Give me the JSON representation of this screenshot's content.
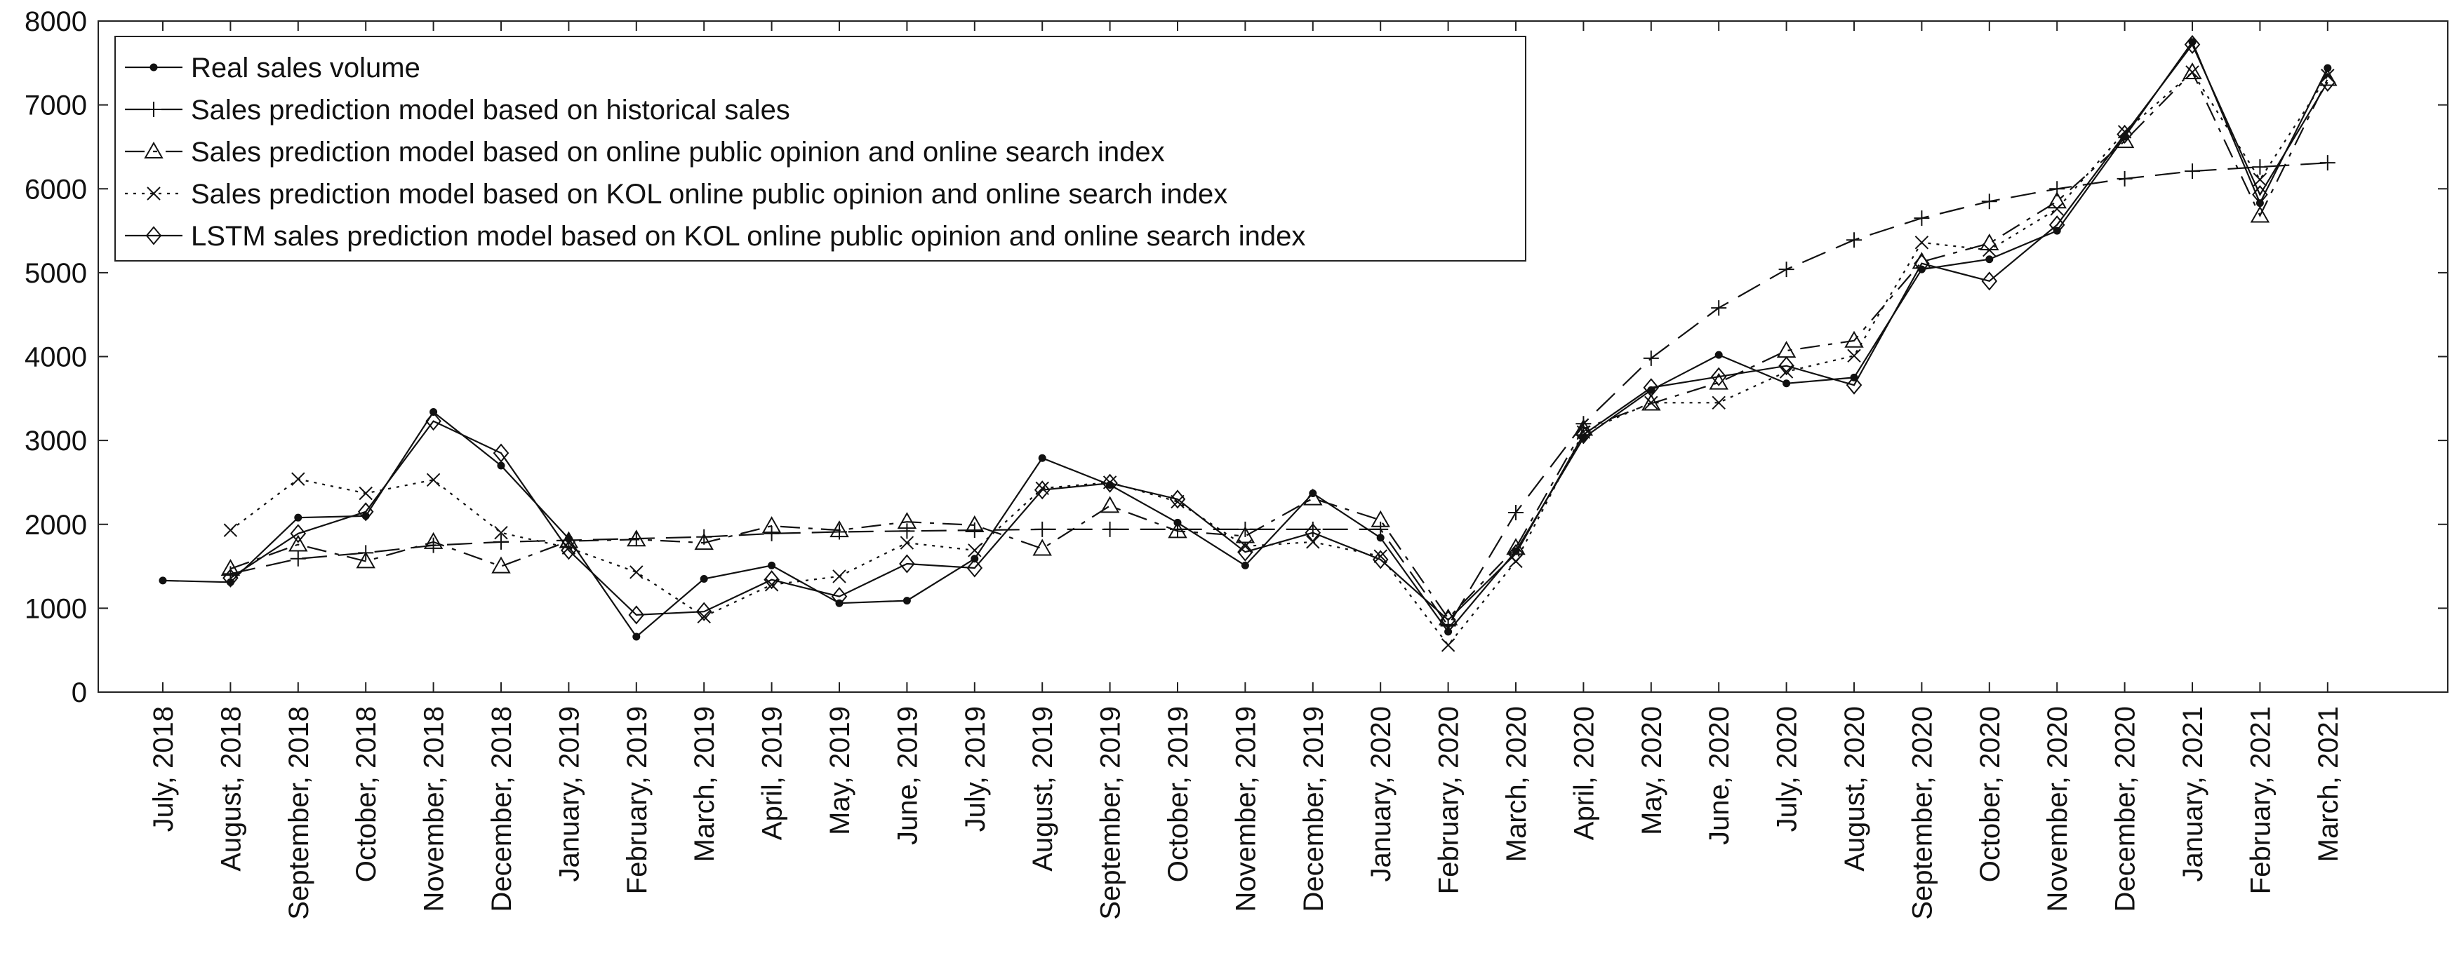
{
  "chart_data": {
    "type": "line",
    "title": "",
    "xlabel": "",
    "ylabel": "",
    "ylim": [
      0,
      8000
    ],
    "yticks": [
      0,
      1000,
      2000,
      3000,
      4000,
      5000,
      6000,
      7000,
      8000
    ],
    "grid": false,
    "legend_position": "top-left",
    "categories": [
      "July, 2018",
      "August, 2018",
      "September, 2018",
      "October, 2018",
      "November, 2018",
      "December, 2018",
      "January, 2019",
      "February, 2019",
      "March, 2019",
      "April, 2019",
      "May, 2019",
      "June, 2019",
      "July, 2019",
      "August, 2019",
      "September, 2019",
      "October, 2019",
      "November, 2019",
      "December, 2019",
      "January, 2020",
      "February, 2020",
      "March, 2020",
      "April, 2020",
      "May, 2020",
      "June, 2020",
      "July, 2020",
      "August, 2020",
      "September, 2020",
      "October, 2020",
      "November, 2020",
      "December, 2020",
      "January, 2021",
      "February, 2021",
      "March, 2021"
    ],
    "series": [
      {
        "name": "Real sales volume",
        "line_style": "solid",
        "marker": "dot",
        "values": [
          1330,
          1310,
          2080,
          2100,
          3340,
          2700,
          1830,
          660,
          1350,
          1510,
          1060,
          1090,
          1590,
          2790,
          2470,
          2020,
          1510,
          2370,
          1840,
          720,
          1680,
          3030,
          3600,
          4020,
          3680,
          3750,
          5040,
          5160,
          5500,
          6620,
          7750,
          5830,
          7440
        ]
      },
      {
        "name": "Sales prediction model based on historical sales",
        "line_style": "dashed",
        "marker": "plus",
        "values": [
          null,
          1410,
          1590,
          1660,
          1750,
          1790,
          1810,
          1830,
          1850,
          1890,
          1910,
          1920,
          1930,
          1940,
          1940,
          1940,
          1940,
          1940,
          1940,
          790,
          2140,
          3200,
          3980,
          4580,
          5040,
          5390,
          5650,
          5850,
          6000,
          6120,
          6210,
          6260,
          6310
        ]
      },
      {
        "name": "Sales prediction model based on online public opinion and online search index",
        "line_style": "dashdot",
        "marker": "triangle",
        "values": [
          null,
          1470,
          1760,
          1560,
          1790,
          1500,
          1800,
          1820,
          1780,
          1980,
          1930,
          2030,
          1990,
          1710,
          2220,
          1920,
          1860,
          2310,
          2050,
          880,
          1720,
          3140,
          3440,
          3690,
          4070,
          4190,
          5130,
          5350,
          5850,
          6570,
          7390,
          5680,
          7310
        ]
      },
      {
        "name": "Sales prediction model based on KOL online public opinion and online search index",
        "line_style": "dotted",
        "marker": "x",
        "values": [
          null,
          1930,
          2540,
          2370,
          2530,
          1900,
          1720,
          1430,
          900,
          1280,
          1380,
          1780,
          1690,
          2430,
          2500,
          2270,
          1740,
          1790,
          1620,
          560,
          1560,
          3100,
          3450,
          3450,
          3820,
          4010,
          5360,
          5270,
          5760,
          6680,
          7390,
          6110,
          7350
        ]
      },
      {
        "name": "LSTM sales prediction model based on KOL online public opinion and online search index",
        "line_style": "solid",
        "marker": "diamond",
        "values": [
          null,
          1360,
          1890,
          2150,
          3230,
          2850,
          1690,
          920,
          960,
          1340,
          1140,
          1530,
          1480,
          2410,
          2490,
          2300,
          1670,
          1900,
          1580,
          860,
          1650,
          3070,
          3630,
          3760,
          3890,
          3660,
          5110,
          4900,
          5570,
          6650,
          7720,
          5930,
          7270
        ]
      }
    ]
  }
}
